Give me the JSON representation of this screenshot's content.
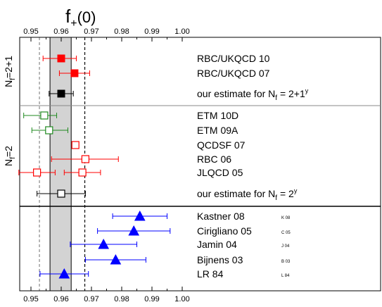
{
  "chart_data": {
    "type": "scatter",
    "title_main": "f",
    "title_sub": "+",
    "title_arg": "(0)",
    "x_range": [
      0.94,
      1.005
    ],
    "x_ticks": [
      "0.95",
      "0.96",
      "0.97",
      "0.98",
      "0.99",
      "1.00"
    ],
    "x_tick_values": [
      0.95,
      0.96,
      0.97,
      0.98,
      0.99,
      1.0
    ],
    "band": {
      "low": 0.9563,
      "high": 0.9633,
      "color": "#d3d3d3"
    },
    "dashed_lines": [
      0.9528,
      0.9678
    ],
    "groups": [
      {
        "label_main": "N",
        "label_sub": "f",
        "label_rest": "=2+1",
        "points": [
          {
            "label": "RBC/UKQCD 10",
            "x": 0.96,
            "xerr_low": 0.006,
            "xerr_high": 0.005,
            "marker": "square-filled",
            "color": "#ff0000",
            "tag": ""
          },
          {
            "label": "RBC/UKQCD 07",
            "x": 0.9644,
            "xerr_low": 0.005,
            "xerr_high": 0.005,
            "marker": "square-filled",
            "color": "#ff0000",
            "tag": ""
          },
          {
            "label": "our estimate for ",
            "label_tail_main": "N",
            "label_tail_sub": "f",
            "label_tail_rest": " = 2+1",
            "label_tail_sup": "y",
            "x": 0.96,
            "xerr_low": 0.004,
            "xerr_high": 0.004,
            "marker": "square-filled",
            "color": "#000000",
            "tag": ""
          }
        ]
      },
      {
        "label_main": "N",
        "label_sub": "f",
        "label_rest": "=2",
        "points": [
          {
            "label": "ETM 10D",
            "x": 0.9544,
            "xerr_low": 0.0068,
            "xerr_high": 0.0041,
            "marker": "square-open",
            "color": "#1f8a1f",
            "tag": ""
          },
          {
            "label": "ETM 09A",
            "x": 0.956,
            "xerr_low": 0.0057,
            "xerr_high": 0.0062,
            "marker": "square-open",
            "color": "#1f8a1f",
            "tag": ""
          },
          {
            "label": "QCDSF 07",
            "x": 0.9647,
            "xerr_low": 0.0,
            "xerr_high": 0.0,
            "marker": "square-open",
            "color": "#ff0000",
            "tag": ""
          },
          {
            "label": "RBC 06",
            "x": 0.968,
            "xerr_low": 0.0112,
            "xerr_high": 0.0109,
            "marker": "square-open",
            "color": "#ff0000",
            "tag": ""
          },
          {
            "label": "JLQCD 05",
            "x": 0.952,
            "xerr_low": 0.006,
            "xerr_high": 0.006,
            "marker": "square-open",
            "color": "#ff0000",
            "tag": ""
          },
          {
            "label": "",
            "x": 0.967,
            "xerr_low": 0.006,
            "xerr_high": 0.006,
            "marker": "square-open",
            "color": "#ff0000",
            "tag": ""
          },
          {
            "label": "our estimate for ",
            "label_tail_main": "N",
            "label_tail_sub": "f",
            "label_tail_rest": " = 2",
            "label_tail_sup": "y",
            "x": 0.96,
            "xerr_low": 0.008,
            "xerr_high": 0.008,
            "marker": "square-open",
            "color": "#000000",
            "tag": ""
          }
        ]
      },
      {
        "label_main": "",
        "label_sub": "",
        "label_rest": "",
        "points": [
          {
            "label": "Kastner 08",
            "x": 0.986,
            "xerr_low": 0.009,
            "xerr_high": 0.009,
            "marker": "triangle-filled",
            "color": "#0000ff",
            "tag": "K 08"
          },
          {
            "label": "Cirigliano 05",
            "x": 0.984,
            "xerr_low": 0.012,
            "xerr_high": 0.012,
            "marker": "triangle-filled",
            "color": "#0000ff",
            "tag": "C 05"
          },
          {
            "label": "Jamin 04",
            "x": 0.974,
            "xerr_low": 0.011,
            "xerr_high": 0.011,
            "marker": "triangle-filled",
            "color": "#0000ff",
            "tag": "J 04"
          },
          {
            "label": "Bijnens 03",
            "x": 0.978,
            "xerr_low": 0.01,
            "xerr_high": 0.01,
            "marker": "triangle-filled",
            "color": "#0000ff",
            "tag": "B 03"
          },
          {
            "label": "LR 84",
            "x": 0.961,
            "xerr_low": 0.008,
            "xerr_high": 0.008,
            "marker": "triangle-filled",
            "color": "#0000ff",
            "tag": "L 84"
          }
        ]
      }
    ]
  }
}
